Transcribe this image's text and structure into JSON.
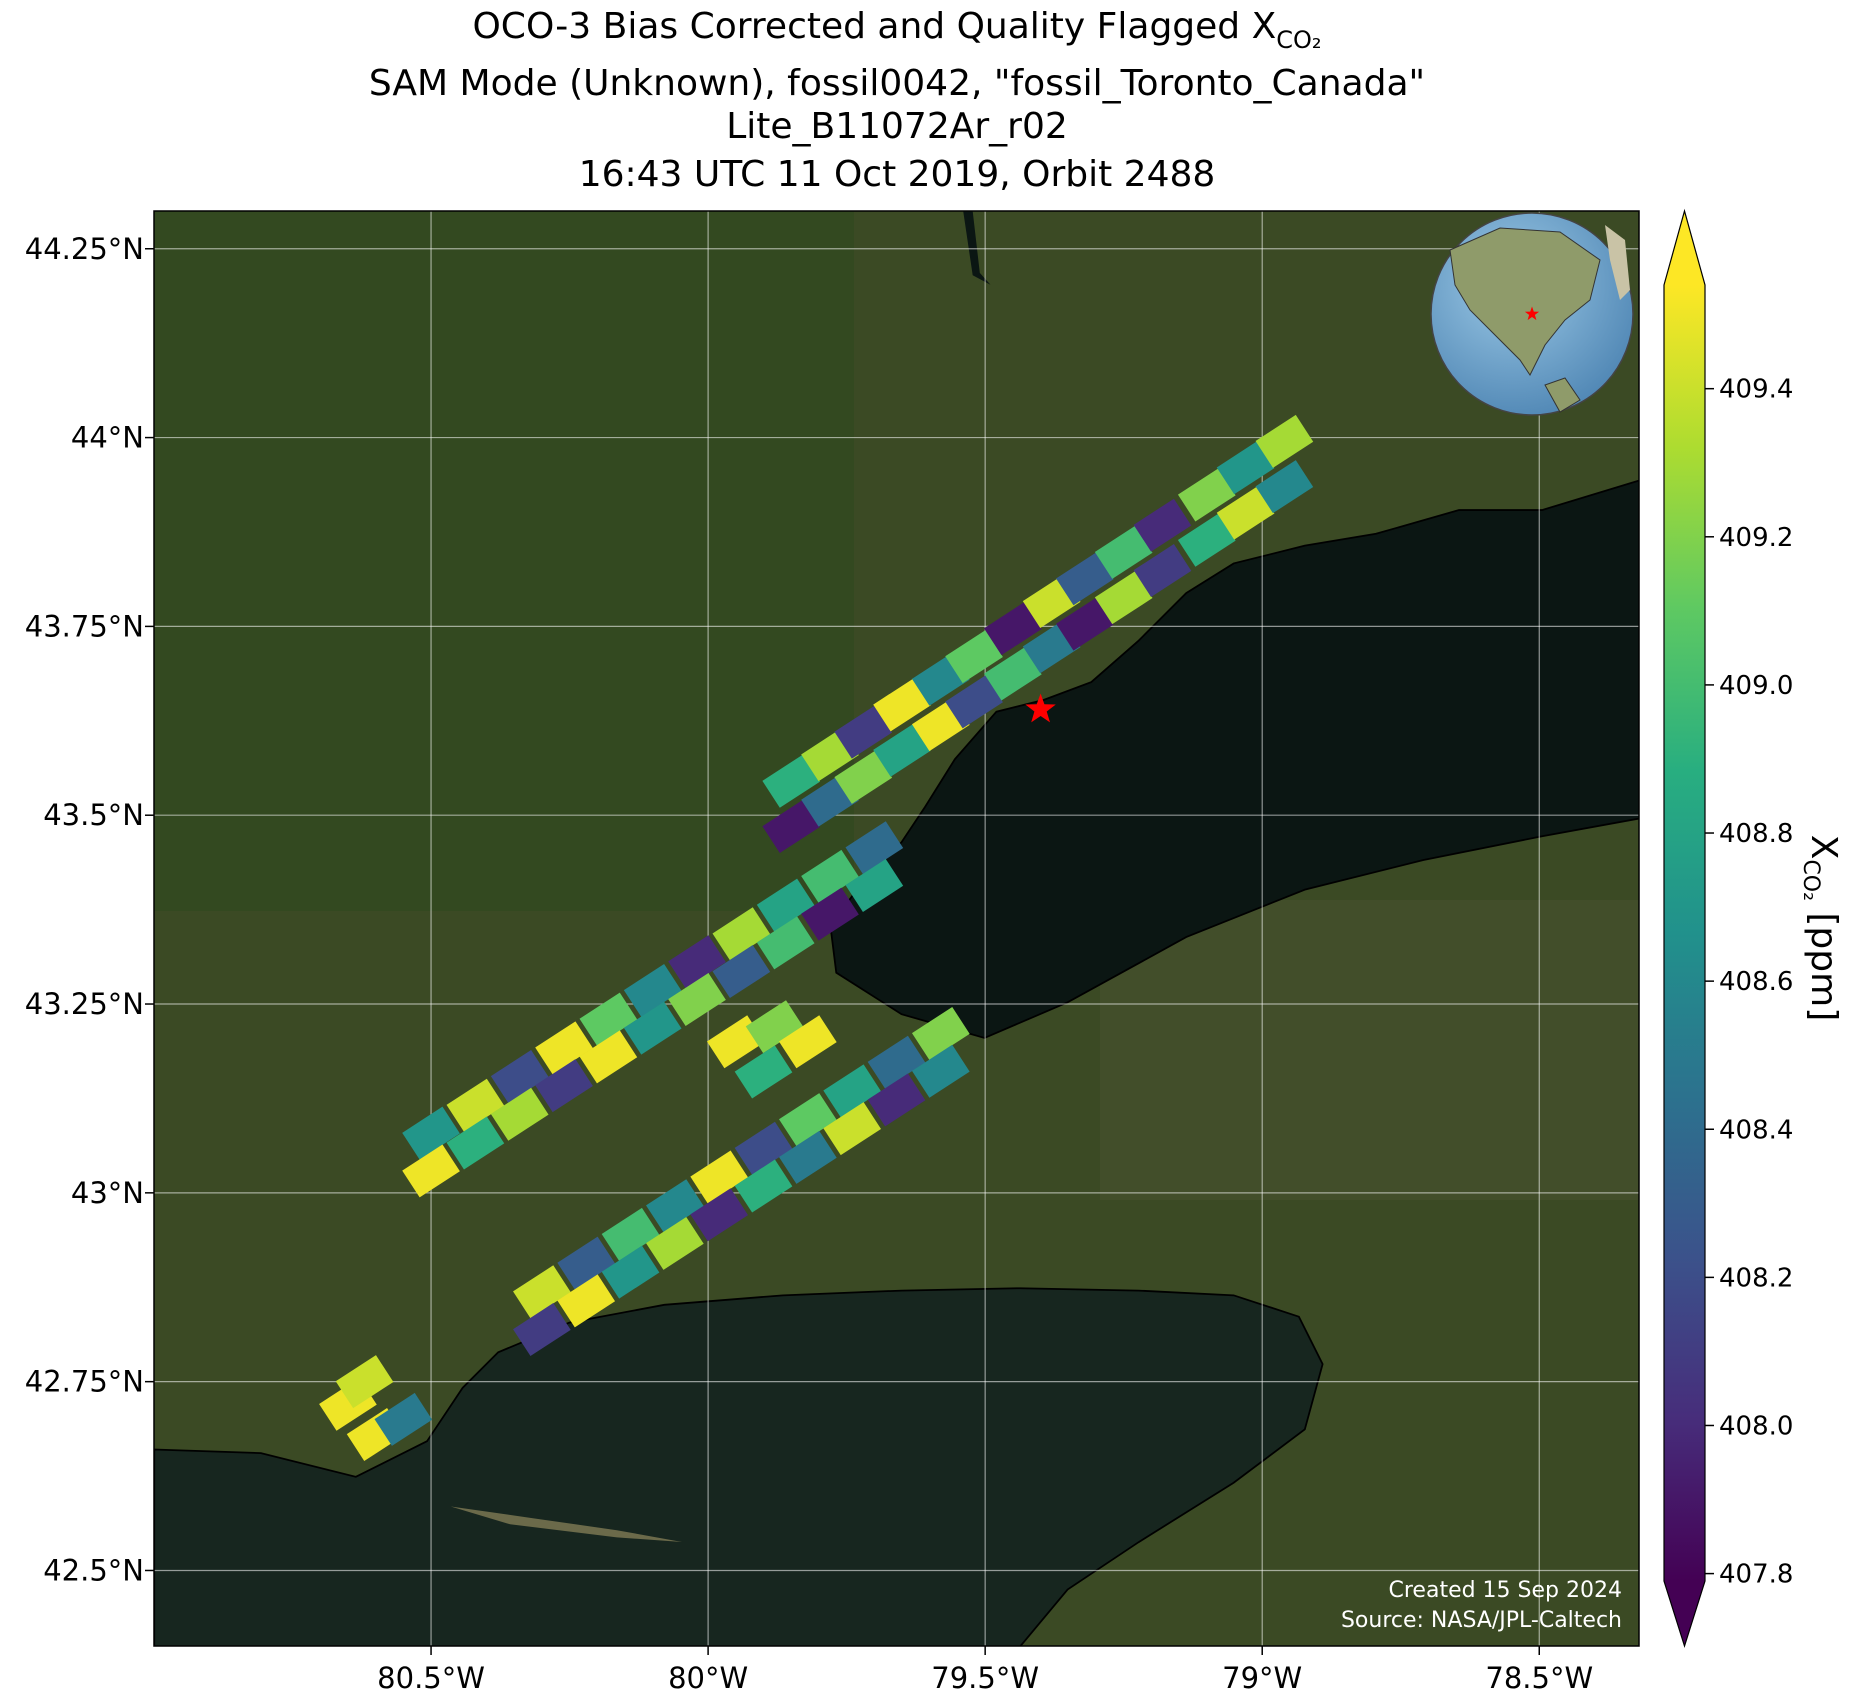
{
  "chart_data": {
    "type": "footprint-map",
    "title_lines": [
      "OCO-3 Bias Corrected and Quality Flagged X",
      "SAM Mode (Unknown), fossil0042, \"fossil_Toronto_Canada\"",
      "Lite_B11072Ar_r02",
      "16:43 UTC 11 Oct 2019, Orbit 2488"
    ],
    "title_subscript": "CO₂",
    "xlim": [
      -81.0,
      -78.32
    ],
    "ylim": [
      42.4,
      44.3
    ],
    "xticks": [
      {
        "value": -80.5,
        "label": "80.5°W"
      },
      {
        "value": -80,
        "label": "80°W"
      },
      {
        "value": -79.5,
        "label": "79.5°W"
      },
      {
        "value": -79,
        "label": "79°W"
      },
      {
        "value": -78.5,
        "label": "78.5°W"
      }
    ],
    "yticks": [
      {
        "value": 42.5,
        "label": "42.5°N"
      },
      {
        "value": 42.75,
        "label": "42.75°N"
      },
      {
        "value": 43,
        "label": "43°N"
      },
      {
        "value": 43.25,
        "label": "43.25°N"
      },
      {
        "value": 43.5,
        "label": "43.5°N"
      },
      {
        "value": 43.75,
        "label": "43.75°N"
      },
      {
        "value": 44,
        "label": "44°N"
      },
      {
        "value": 44.25,
        "label": "44.25°N"
      }
    ],
    "grid": true,
    "lon": [
      -79.85,
      -79.78,
      -79.72,
      -79.65,
      -79.58,
      -79.52,
      -79.45,
      -79.38,
      -79.32,
      -79.25,
      -79.18,
      -79.1,
      -79.03,
      -78.96,
      -79.85,
      -79.78,
      -79.72,
      -79.65,
      -79.58,
      -79.52,
      -79.45,
      -79.38,
      -79.32,
      -79.25,
      -79.18,
      -79.1,
      -79.03,
      -78.96,
      -80.5,
      -80.42,
      -80.34,
      -80.26,
      -80.18,
      -80.1,
      -80.02,
      -79.94,
      -79.86,
      -79.78,
      -79.7,
      -80.5,
      -80.42,
      -80.34,
      -80.26,
      -80.18,
      -80.1,
      -80.02,
      -79.94,
      -79.86,
      -79.78,
      -79.7,
      -80.3,
      -80.22,
      -80.14,
      -80.06,
      -79.98,
      -79.9,
      -79.82,
      -79.74,
      -79.66,
      -79.58,
      -80.3,
      -80.22,
      -80.14,
      -80.06,
      -79.98,
      -79.9,
      -79.82,
      -79.74,
      -79.66,
      -79.58,
      -80.65,
      -80.6,
      -80.55,
      -80.62,
      -79.95,
      -79.88,
      -79.82,
      -79.9
    ],
    "lat": [
      43.545,
      43.58,
      43.61,
      43.646,
      43.68,
      43.71,
      43.747,
      43.783,
      43.813,
      43.848,
      43.884,
      43.924,
      43.96,
      43.995,
      43.485,
      43.52,
      43.55,
      43.586,
      43.62,
      43.65,
      43.687,
      43.723,
      43.753,
      43.788,
      43.824,
      43.864,
      43.9,
      43.935,
      43.079,
      43.116,
      43.154,
      43.192,
      43.23,
      43.268,
      43.306,
      43.343,
      43.381,
      43.419,
      43.457,
      43.029,
      43.066,
      43.104,
      43.142,
      43.18,
      43.218,
      43.256,
      43.293,
      43.331,
      43.369,
      43.407,
      42.869,
      42.907,
      42.945,
      42.983,
      43.021,
      43.059,
      43.097,
      43.135,
      43.173,
      43.211,
      42.819,
      42.857,
      42.895,
      42.933,
      42.971,
      43.009,
      43.047,
      43.085,
      43.123,
      43.161,
      42.72,
      42.68,
      42.7,
      42.75,
      43.2,
      43.22,
      43.2,
      43.16
    ],
    "xco2": [
      408.9,
      409.3,
      408.1,
      409.5,
      408.6,
      409.1,
      407.9,
      409.4,
      408.3,
      409.0,
      408.0,
      409.2,
      408.7,
      409.3,
      407.9,
      408.4,
      409.2,
      408.8,
      409.5,
      408.2,
      409.0,
      408.5,
      407.9,
      409.3,
      408.1,
      408.9,
      409.4,
      408.6,
      408.7,
      409.4,
      408.2,
      409.5,
      409.1,
      408.6,
      408.0,
      409.3,
      408.8,
      409.0,
      408.4,
      409.5,
      408.9,
      409.3,
      408.1,
      409.5,
      408.7,
      409.2,
      408.3,
      409.0,
      407.9,
      408.8,
      409.4,
      408.3,
      409.0,
      408.6,
      409.5,
      408.2,
      409.1,
      408.8,
      408.4,
      409.2,
      408.1,
      409.5,
      408.7,
      409.3,
      408.0,
      408.9,
      408.5,
      409.4,
      408.0,
      408.6,
      409.5,
      409.5,
      408.5,
      409.4,
      409.5,
      409.2,
      409.5,
      408.9
    ],
    "target": {
      "lon": -79.4,
      "lat": 43.64,
      "color": "#ff0000"
    },
    "clim": [
      407.79,
      409.54
    ],
    "colormap": [
      "#440154",
      "#472d7b",
      "#3b528b",
      "#2c728e",
      "#21918c",
      "#28ae80",
      "#5ec962",
      "#addc30",
      "#fde725"
    ],
    "colorbar_ticks": [
      407.8,
      {
        "value": 408,
        "label": "408.0"
      },
      408.2,
      408.4,
      408.6,
      408.8,
      {
        "value": 409,
        "label": "409.0"
      },
      409.2,
      409.4
    ],
    "colorbar_label": {
      "main": "X",
      "sub": "CO₂",
      "unit": " [ppm]"
    },
    "credits": [
      "Created 15 Sep 2024",
      "Source: NASA/JPL-Caltech"
    ]
  }
}
